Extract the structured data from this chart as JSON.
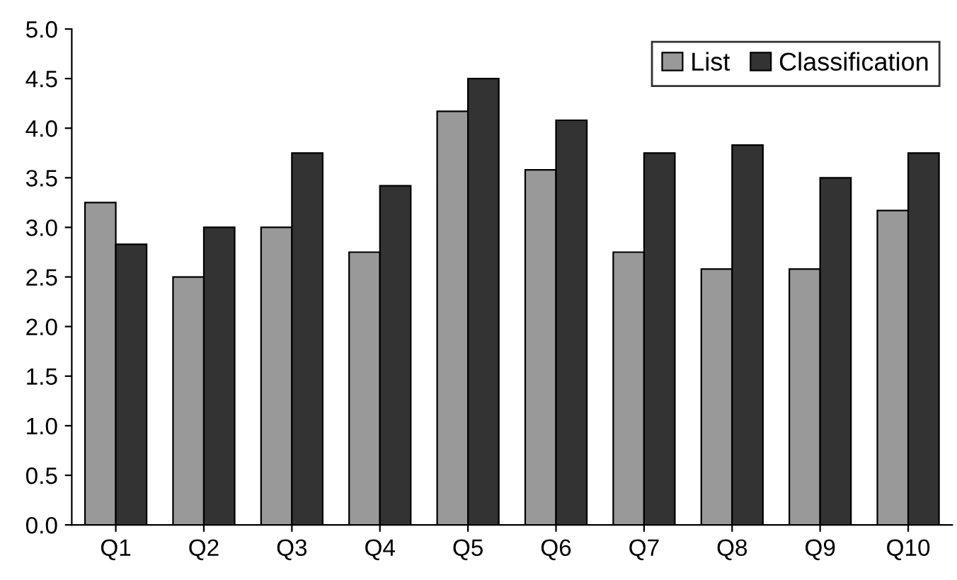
{
  "chart_data": {
    "type": "bar",
    "categories": [
      "Q1",
      "Q2",
      "Q3",
      "Q4",
      "Q5",
      "Q6",
      "Q7",
      "Q8",
      "Q9",
      "Q10"
    ],
    "series": [
      {
        "name": "List",
        "color": "#999999",
        "values": [
          3.25,
          2.5,
          3.0,
          2.75,
          4.17,
          3.58,
          2.75,
          2.58,
          2.58,
          3.17
        ]
      },
      {
        "name": "Classification",
        "color": "#333333",
        "values": [
          2.83,
          3.0,
          3.75,
          3.42,
          4.5,
          4.08,
          3.75,
          3.83,
          3.5,
          3.75
        ]
      }
    ],
    "ylim": [
      0,
      5.0
    ],
    "yticks": [
      {
        "value": 0,
        "label": "0.0"
      },
      {
        "value": 0.5,
        "label": "0.5"
      },
      {
        "value": 1.0,
        "label": "1.0"
      },
      {
        "value": 1.5,
        "label": "1.5"
      },
      {
        "value": 2.0,
        "label": "2.0"
      },
      {
        "value": 2.5,
        "label": "2.5"
      },
      {
        "value": 3.0,
        "label": "3.0"
      },
      {
        "value": 3.5,
        "label": "3.5"
      },
      {
        "value": 4.0,
        "label": "4.0"
      },
      {
        "value": 4.5,
        "label": "4.5"
      },
      {
        "value": 5.0,
        "label": "5.0"
      }
    ],
    "grid": false,
    "legend": "top right"
  }
}
